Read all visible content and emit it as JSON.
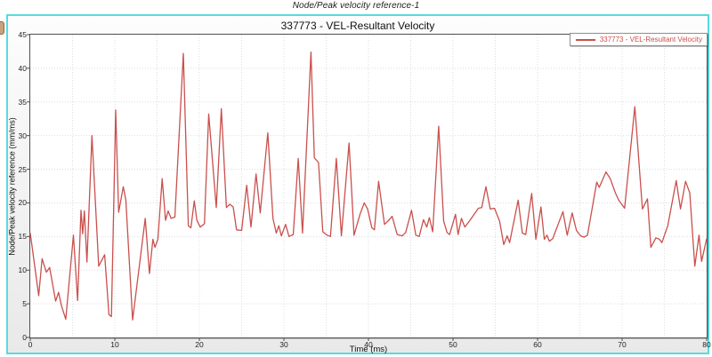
{
  "page": {
    "outer_title": "Node/Peak velocity reference-1"
  },
  "colors": {
    "box_border": "#55dcdc",
    "series_red": "#c9504d",
    "grid": "#dcdce3",
    "frame": "#4f4f4f",
    "tick_text": "#222222"
  },
  "chart_data": {
    "type": "line",
    "title": "337773 - VEL-Resultant Velocity",
    "xlabel": "Time (ms)",
    "ylabel": "Node/Peak velocity reference (mm/ms)",
    "xlim": [
      0,
      80
    ],
    "ylim": [
      0,
      45
    ],
    "xticks": [
      0,
      10,
      20,
      30,
      40,
      50,
      60,
      70,
      80
    ],
    "yticks": [
      0,
      5,
      10,
      15,
      20,
      25,
      30,
      35,
      40,
      45
    ],
    "grid": true,
    "grid_step_x": 5,
    "grid_step_y": 5,
    "legend_position": "top-right",
    "series": [
      {
        "name": "337773 - VEL-Resultant Velocity",
        "color": "#c9504d",
        "points": [
          [
            0,
            15.5
          ],
          [
            1,
            6.2
          ],
          [
            1.4,
            11.7
          ],
          [
            1.9,
            9.7
          ],
          [
            2.3,
            10.4
          ],
          [
            3,
            5.4
          ],
          [
            3.35,
            6.7
          ],
          [
            3.7,
            4.7
          ],
          [
            4.2,
            2.7
          ],
          [
            5.1,
            15.2
          ],
          [
            5.6,
            5.5
          ],
          [
            6,
            18.9
          ],
          [
            6.2,
            15.4
          ],
          [
            6.4,
            18.8
          ],
          [
            6.7,
            11.2
          ],
          [
            7.3,
            30
          ],
          [
            8.1,
            10.6
          ],
          [
            8.8,
            12.3
          ],
          [
            9.3,
            3.4
          ],
          [
            9.6,
            3.1
          ],
          [
            10.1,
            33.8
          ],
          [
            10.45,
            18.6
          ],
          [
            11,
            22.4
          ],
          [
            11.3,
            20.4
          ],
          [
            12.1,
            2.6
          ],
          [
            13.6,
            17.7
          ],
          [
            14.1,
            9.5
          ],
          [
            14.5,
            14.6
          ],
          [
            14.75,
            13.4
          ],
          [
            15.1,
            14.6
          ],
          [
            15.6,
            23.6
          ],
          [
            16,
            17.4
          ],
          [
            16.3,
            18.8
          ],
          [
            16.65,
            17.7
          ],
          [
            17.1,
            17.9
          ],
          [
            18.1,
            42.2
          ],
          [
            18.7,
            16.6
          ],
          [
            19,
            16.3
          ],
          [
            19.4,
            20.3
          ],
          [
            19.7,
            17.4
          ],
          [
            20.1,
            16.4
          ],
          [
            20.6,
            16.9
          ],
          [
            21.1,
            33.2
          ],
          [
            22,
            19.3
          ],
          [
            22.6,
            34
          ],
          [
            23.2,
            19.3
          ],
          [
            23.6,
            19.8
          ],
          [
            24,
            19.4
          ],
          [
            24.4,
            16
          ],
          [
            25,
            15.9
          ],
          [
            25.6,
            22.6
          ],
          [
            26.1,
            16.4
          ],
          [
            26.7,
            24.3
          ],
          [
            27.2,
            18.5
          ],
          [
            28.1,
            30.4
          ],
          [
            28.7,
            17.7
          ],
          [
            29.1,
            15.5
          ],
          [
            29.4,
            16.6
          ],
          [
            29.7,
            15.1
          ],
          [
            30.2,
            16.8
          ],
          [
            30.6,
            15
          ],
          [
            31.1,
            15.3
          ],
          [
            31.7,
            26.6
          ],
          [
            32.2,
            15.5
          ],
          [
            33.2,
            42.4
          ],
          [
            33.6,
            26.7
          ],
          [
            34.1,
            26
          ],
          [
            34.6,
            15.7
          ],
          [
            35.1,
            15.2
          ],
          [
            35.5,
            15
          ],
          [
            36.2,
            26.6
          ],
          [
            36.8,
            15.1
          ],
          [
            37.7,
            28.9
          ],
          [
            38.3,
            15.2
          ],
          [
            39,
            18.3
          ],
          [
            39.5,
            20
          ],
          [
            39.9,
            19.1
          ],
          [
            40.4,
            16.3
          ],
          [
            40.7,
            16
          ],
          [
            41.2,
            23.2
          ],
          [
            41.9,
            16.8
          ],
          [
            42.4,
            17.4
          ],
          [
            42.8,
            18
          ],
          [
            43.4,
            15.3
          ],
          [
            44,
            15.1
          ],
          [
            44.4,
            15.6
          ],
          [
            45.1,
            18.9
          ],
          [
            45.6,
            15.2
          ],
          [
            46,
            15
          ],
          [
            46.5,
            17.5
          ],
          [
            46.9,
            16.4
          ],
          [
            47.2,
            17.8
          ],
          [
            47.6,
            15.7
          ],
          [
            48.3,
            31.4
          ],
          [
            48.9,
            17.3
          ],
          [
            49.3,
            15.6
          ],
          [
            49.6,
            15.3
          ],
          [
            50.3,
            18.3
          ],
          [
            50.6,
            15.3
          ],
          [
            51,
            17.7
          ],
          [
            51.4,
            16.4
          ],
          [
            52,
            17.4
          ],
          [
            53,
            19.2
          ],
          [
            53.4,
            19.3
          ],
          [
            53.9,
            22.4
          ],
          [
            54.4,
            19.1
          ],
          [
            54.9,
            19.2
          ],
          [
            55.5,
            17.3
          ],
          [
            56,
            13.8
          ],
          [
            56.4,
            15.1
          ],
          [
            56.7,
            14.1
          ],
          [
            57.7,
            20.4
          ],
          [
            58.2,
            15.5
          ],
          [
            58.6,
            15.3
          ],
          [
            59.3,
            21.4
          ],
          [
            59.8,
            14.6
          ],
          [
            60.4,
            19.4
          ],
          [
            60.8,
            14.6
          ],
          [
            61.1,
            15.2
          ],
          [
            61.4,
            14.3
          ],
          [
            61.8,
            14.7
          ],
          [
            63,
            18.7
          ],
          [
            63.5,
            15.2
          ],
          [
            64.1,
            18.5
          ],
          [
            64.6,
            15.9
          ],
          [
            65.1,
            15.1
          ],
          [
            65.5,
            14.9
          ],
          [
            65.9,
            15.2
          ],
          [
            67,
            23.1
          ],
          [
            67.3,
            22.3
          ],
          [
            68.1,
            24.6
          ],
          [
            68.6,
            23.6
          ],
          [
            69.2,
            21.5
          ],
          [
            69.6,
            20.4
          ],
          [
            70.3,
            19.2
          ],
          [
            71.5,
            34.3
          ],
          [
            72.4,
            19.1
          ],
          [
            73,
            20.6
          ],
          [
            73.4,
            13.4
          ],
          [
            74,
            14.8
          ],
          [
            74.4,
            14.6
          ],
          [
            74.7,
            14.1
          ],
          [
            75.4,
            16.6
          ],
          [
            76.4,
            23.3
          ],
          [
            76.9,
            19.1
          ],
          [
            77.5,
            23.2
          ],
          [
            78,
            21.5
          ],
          [
            78.6,
            10.6
          ],
          [
            79.1,
            15.2
          ],
          [
            79.4,
            11.3
          ],
          [
            80,
            14.7
          ]
        ]
      }
    ]
  }
}
